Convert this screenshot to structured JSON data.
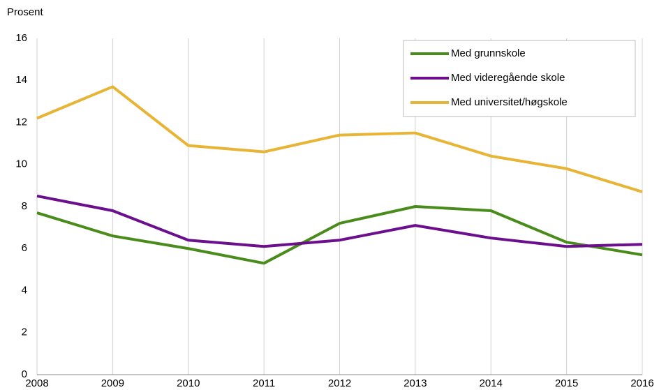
{
  "chart_data": {
    "type": "line",
    "y_label": "Prosent",
    "x": [
      2008,
      2009,
      2010,
      2011,
      2012,
      2013,
      2014,
      2015,
      2016
    ],
    "series": [
      {
        "name": "Med grunnskole",
        "color": "#4a8c1c",
        "values": [
          7.7,
          6.6,
          6.0,
          5.3,
          7.2,
          8.0,
          7.8,
          6.3,
          5.7
        ]
      },
      {
        "name": "Med videregående skole",
        "color": "#6b0f8e",
        "values": [
          8.5,
          7.8,
          6.4,
          6.1,
          6.4,
          7.1,
          6.5,
          6.1,
          6.2
        ]
      },
      {
        "name": "Med universitet/høgskole",
        "color": "#e8b436",
        "values": [
          12.2,
          13.7,
          10.9,
          10.6,
          11.4,
          11.5,
          10.4,
          9.8,
          8.7
        ]
      }
    ],
    "xlim": [
      2008,
      2016
    ],
    "xticks": [
      2008,
      2009,
      2010,
      2011,
      2012,
      2013,
      2014,
      2015,
      2016
    ],
    "ylim": [
      0,
      16
    ],
    "yticks": [
      0,
      2,
      4,
      6,
      8,
      10,
      12,
      14,
      16
    ],
    "grid": "x",
    "legend": "upper right"
  }
}
